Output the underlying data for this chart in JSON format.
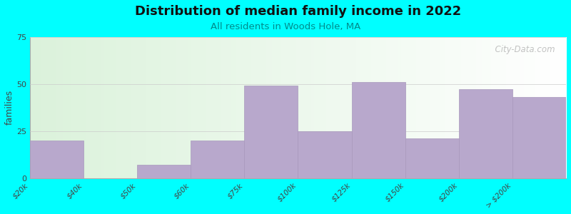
{
  "title": "Distribution of median family income in 2022",
  "subtitle": "All residents in Woods Hole, MA",
  "subtitle_color": "#008B8B",
  "title_color": "#111111",
  "background_color": "#00FFFF",
  "bar_color": "#B8A8CC",
  "bar_edge_color": "#A898BC",
  "ylabel": "families",
  "ylim": [
    0,
    75
  ],
  "yticks": [
    0,
    25,
    50,
    75
  ],
  "categories": [
    "$20k",
    "$40k",
    "$50k",
    "$60k",
    "$75k",
    "$100k",
    "$125k",
    "$150k",
    "$200k",
    "> $200k"
  ],
  "edges": [
    0,
    1,
    2,
    3,
    4,
    5,
    6,
    7,
    8,
    9,
    10
  ],
  "values": [
    20,
    0,
    7,
    20,
    49,
    25,
    51,
    21,
    47,
    43
  ],
  "watermark": "  City-Data.com"
}
